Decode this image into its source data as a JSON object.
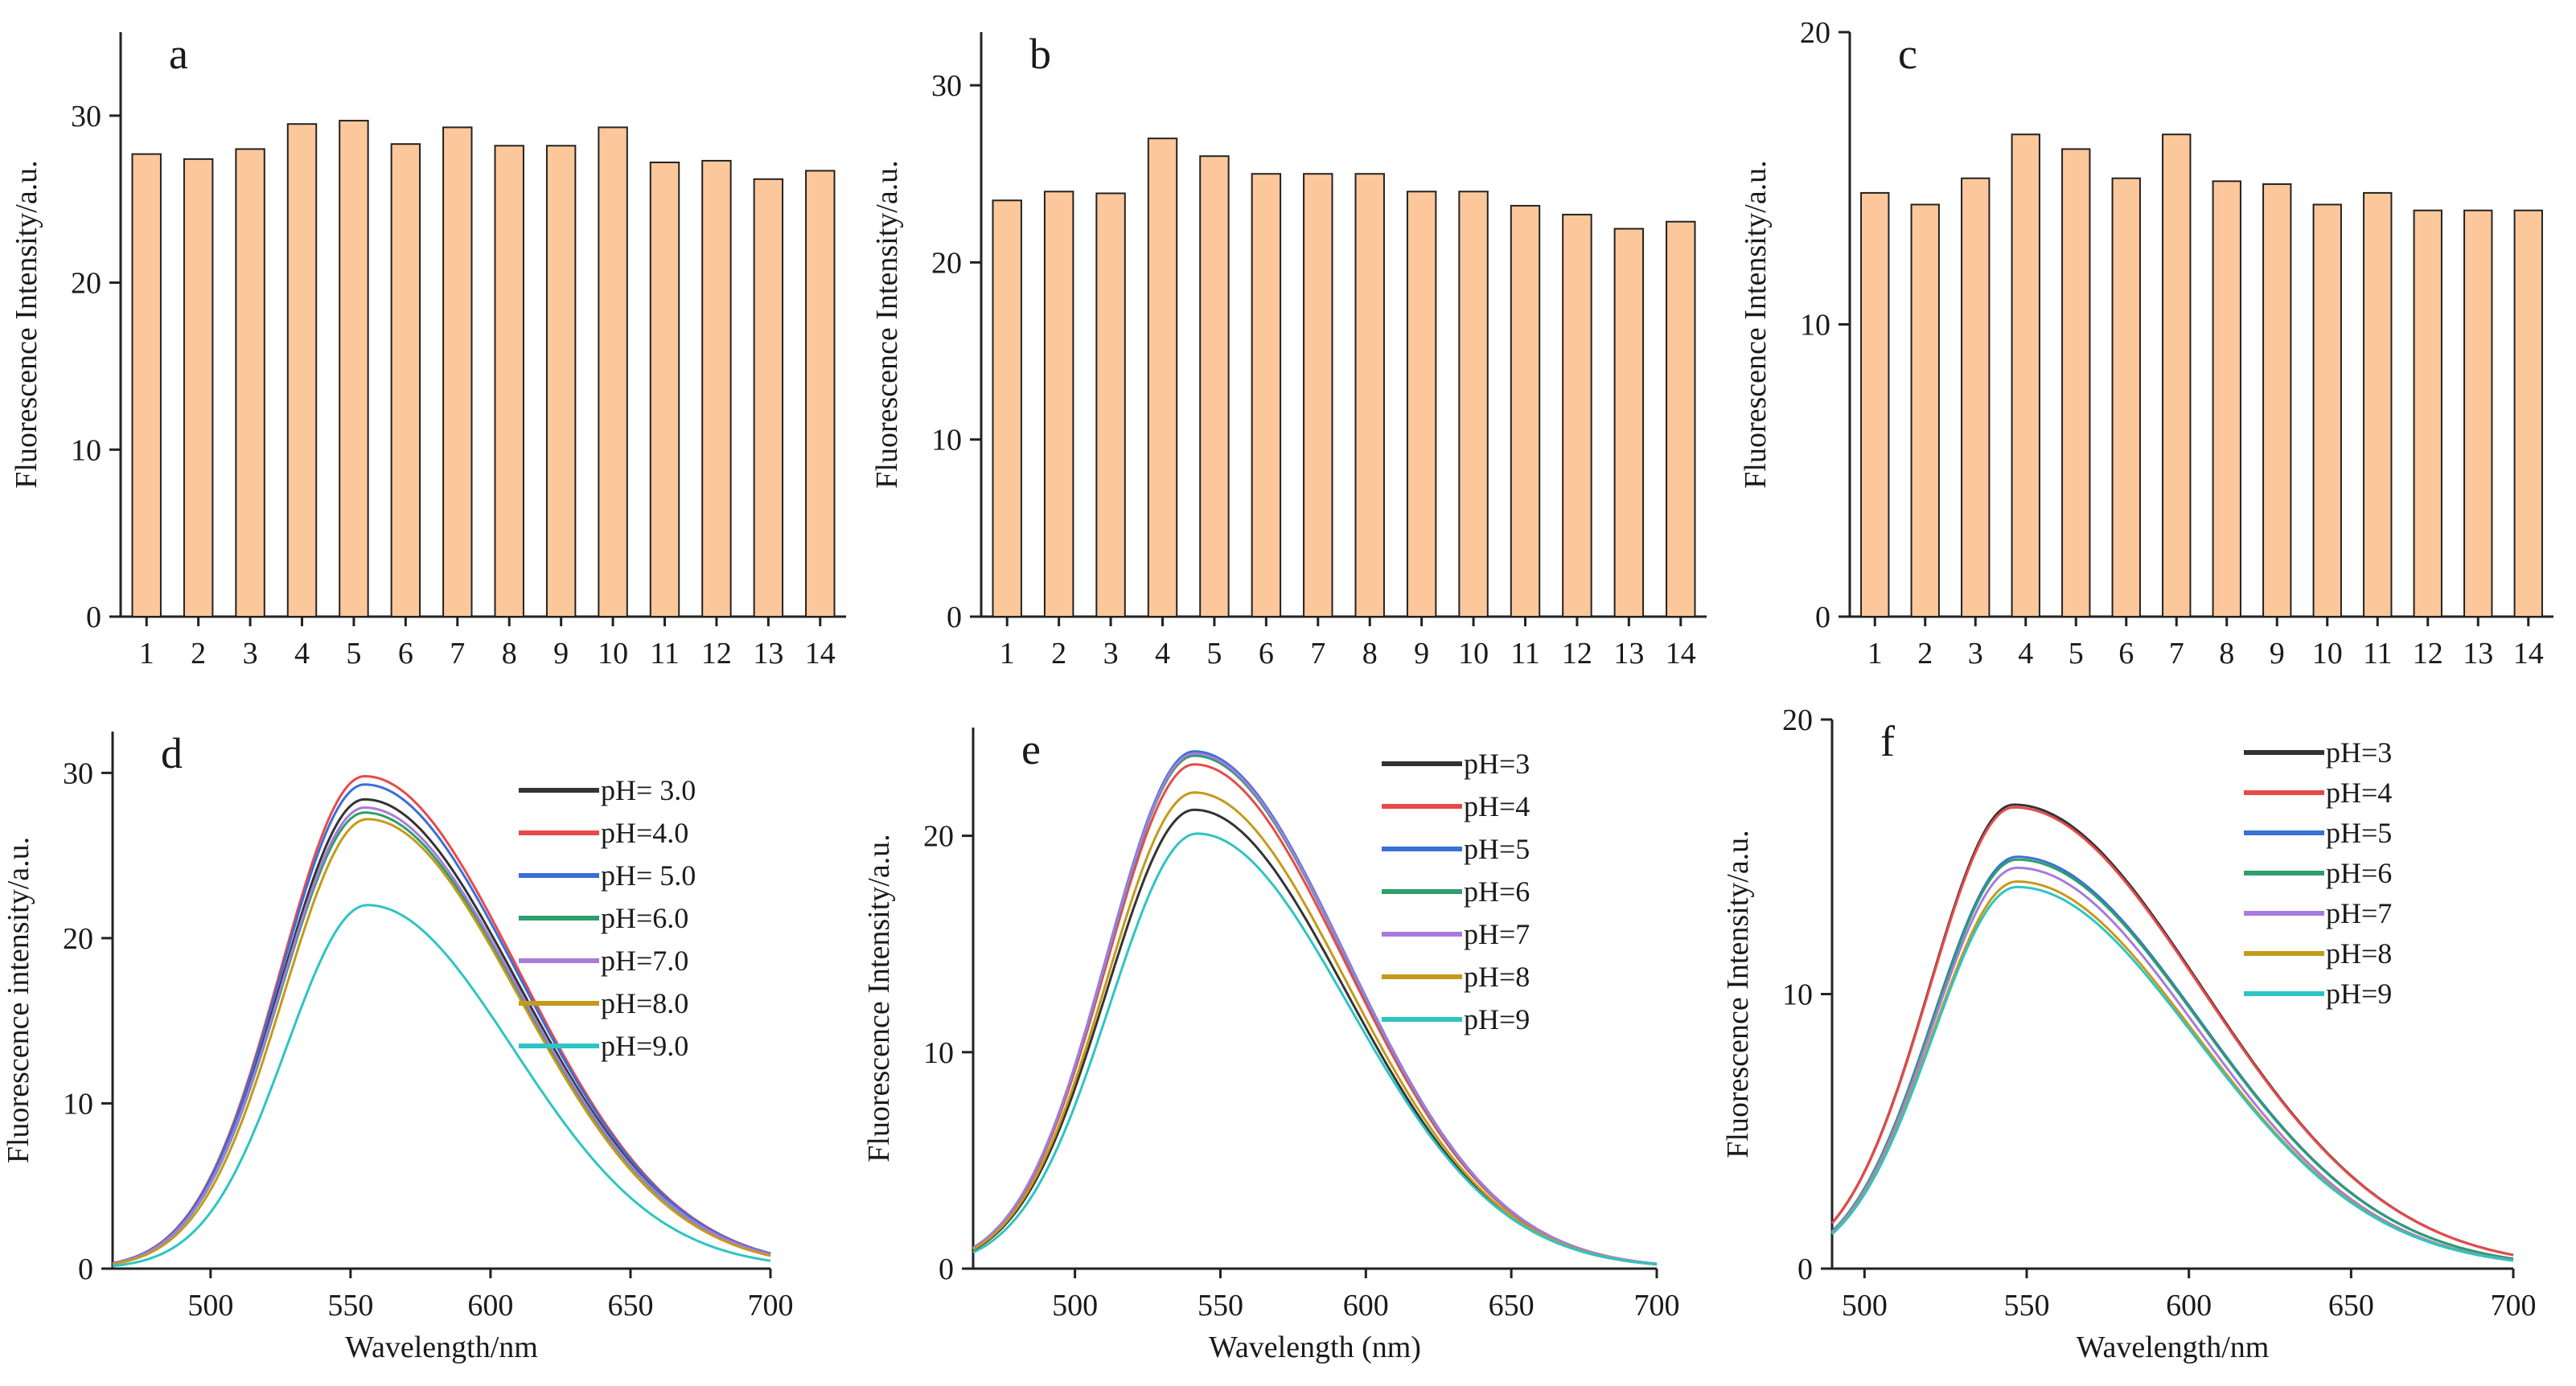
{
  "chart_data": [
    {
      "id": "a",
      "type": "bar",
      "panel_label": "a",
      "ylabel": "Fluorescence Intensity/a.u.",
      "xlabel": "",
      "categories": [
        "1",
        "2",
        "3",
        "4",
        "5",
        "6",
        "7",
        "8",
        "9",
        "10",
        "11",
        "12",
        "13",
        "14"
      ],
      "values": [
        27.7,
        27.4,
        28.0,
        29.5,
        29.7,
        28.3,
        29.3,
        28.2,
        28.2,
        29.3,
        27.2,
        27.3,
        26.2,
        26.7
      ],
      "ylim": [
        0,
        35
      ],
      "yticks": [
        0,
        10,
        20,
        30
      ],
      "bar_color": "#FCC89B",
      "edge_color": "#222222"
    },
    {
      "id": "b",
      "type": "bar",
      "panel_label": "b",
      "ylabel": "Fluorescence Intensity/a.u.",
      "xlabel": "",
      "categories": [
        "1",
        "2",
        "3",
        "4",
        "5",
        "6",
        "7",
        "8",
        "9",
        "10",
        "11",
        "12",
        "13",
        "14"
      ],
      "values": [
        23.5,
        24.0,
        23.9,
        27.0,
        26.0,
        25.0,
        25.0,
        25.0,
        24.0,
        24.0,
        23.2,
        22.7,
        21.9,
        22.3
      ],
      "ylim": [
        0,
        33
      ],
      "yticks": [
        0,
        10,
        20,
        30
      ],
      "bar_color": "#FCC89B",
      "edge_color": "#222222"
    },
    {
      "id": "c",
      "type": "bar",
      "panel_label": "c",
      "ylabel": "Fluorescence Intensity/a.u.",
      "xlabel": "",
      "categories": [
        "1",
        "2",
        "3",
        "4",
        "5",
        "6",
        "7",
        "8",
        "9",
        "10",
        "11",
        "12",
        "13",
        "14"
      ],
      "values": [
        14.5,
        14.1,
        15.0,
        16.5,
        16.0,
        15.0,
        16.5,
        14.9,
        14.8,
        14.1,
        14.5,
        13.9,
        13.9,
        13.9
      ],
      "ylim": [
        0,
        20
      ],
      "yticks": [
        0,
        10,
        20
      ],
      "bar_color": "#FCC89B",
      "edge_color": "#222222"
    },
    {
      "id": "d",
      "type": "line",
      "panel_label": "d",
      "xlabel": "Wavelength/nm",
      "ylabel": "Fluorescence intensity/a.u.",
      "xlim": [
        465,
        700
      ],
      "ylim": [
        0,
        32.5
      ],
      "xticks": [
        500,
        550,
        600,
        650,
        700
      ],
      "yticks": [
        0,
        10,
        20,
        30
      ],
      "x_from": 465,
      "x_to": 700,
      "series": [
        {
          "name": "pH= 3.0",
          "color": "#333333",
          "peak_x": 555,
          "peak_y": 28.4,
          "width_left": 30,
          "width_right": 55
        },
        {
          "name": "pH=4.0",
          "color": "#E84A4A",
          "peak_x": 555,
          "peak_y": 29.8,
          "width_left": 30,
          "width_right": 55
        },
        {
          "name": "pH= 5.0",
          "color": "#3B6FD8",
          "peak_x": 555,
          "peak_y": 29.3,
          "width_left": 30,
          "width_right": 55
        },
        {
          "name": "pH=6.0",
          "color": "#2E9E6A",
          "peak_x": 555,
          "peak_y": 27.6,
          "width_left": 30,
          "width_right": 55
        },
        {
          "name": "pH=7.0",
          "color": "#A77BDB",
          "peak_x": 555,
          "peak_y": 27.9,
          "width_left": 30,
          "width_right": 55
        },
        {
          "name": "pH=8.0",
          "color": "#C49A1A",
          "peak_x": 556,
          "peak_y": 27.2,
          "width_left": 30,
          "width_right": 54
        },
        {
          "name": "pH=9.0",
          "color": "#2EC4C4",
          "peak_x": 556,
          "peak_y": 22.0,
          "width_left": 29,
          "width_right": 52
        }
      ]
    },
    {
      "id": "e",
      "type": "line",
      "panel_label": "e",
      "xlabel": "Wavelength (nm)",
      "ylabel": "Fluorescence Intensity/a.u.",
      "xlim": [
        465,
        700
      ],
      "ylim": [
        0,
        25
      ],
      "xticks": [
        500,
        550,
        600,
        650,
        700
      ],
      "yticks": [
        0,
        10,
        20
      ],
      "x_from": 465,
      "x_to": 700,
      "series": [
        {
          "name": "pH=3",
          "color": "#333333",
          "peak_x": 541,
          "peak_y": 21.2,
          "width_left": 30,
          "width_right": 52
        },
        {
          "name": "pH=4",
          "color": "#E84A4A",
          "peak_x": 541,
          "peak_y": 23.3,
          "width_left": 30,
          "width_right": 52
        },
        {
          "name": "pH=5",
          "color": "#3B6FD8",
          "peak_x": 541,
          "peak_y": 23.9,
          "width_left": 30,
          "width_right": 52
        },
        {
          "name": "pH=6",
          "color": "#2E9E6A",
          "peak_x": 541,
          "peak_y": 23.7,
          "width_left": 30,
          "width_right": 52
        },
        {
          "name": "pH=7",
          "color": "#A77BDB",
          "peak_x": 541,
          "peak_y": 23.8,
          "width_left": 30,
          "width_right": 52
        },
        {
          "name": "pH=8",
          "color": "#C49A1A",
          "peak_x": 541,
          "peak_y": 22.0,
          "width_left": 30,
          "width_right": 52
        },
        {
          "name": "pH=9",
          "color": "#2EC4C4",
          "peak_x": 542,
          "peak_y": 20.1,
          "width_left": 30,
          "width_right": 52
        }
      ]
    },
    {
      "id": "f",
      "type": "line",
      "panel_label": "f",
      "xlabel": "Wavelength/nm",
      "ylabel": "Fluorescence Intensity/a.u.",
      "xlim": [
        490,
        700
      ],
      "ylim": [
        0,
        20
      ],
      "xticks": [
        500,
        550,
        600,
        650,
        700
      ],
      "yticks": [
        0,
        10,
        20
      ],
      "x_from": 490,
      "x_to": 700,
      "series": [
        {
          "name": "pH=3",
          "color": "#333333",
          "peak_x": 546,
          "peak_y": 16.9,
          "width_left": 26,
          "width_right": 58
        },
        {
          "name": "pH=4",
          "color": "#E84A4A",
          "peak_x": 546,
          "peak_y": 16.8,
          "width_left": 26,
          "width_right": 58
        },
        {
          "name": "pH=5",
          "color": "#3B6FD8",
          "peak_x": 547,
          "peak_y": 15.0,
          "width_left": 26,
          "width_right": 56
        },
        {
          "name": "pH=6",
          "color": "#2E9E6A",
          "peak_x": 547,
          "peak_y": 14.9,
          "width_left": 26,
          "width_right": 56
        },
        {
          "name": "pH=7",
          "color": "#A77BDB",
          "peak_x": 547,
          "peak_y": 14.6,
          "width_left": 26,
          "width_right": 55
        },
        {
          "name": "pH=8",
          "color": "#C49A1A",
          "peak_x": 547,
          "peak_y": 14.1,
          "width_left": 26,
          "width_right": 55
        },
        {
          "name": "pH=9",
          "color": "#2EC4C4",
          "peak_x": 547,
          "peak_y": 13.9,
          "width_left": 26,
          "width_right": 55
        }
      ]
    }
  ]
}
